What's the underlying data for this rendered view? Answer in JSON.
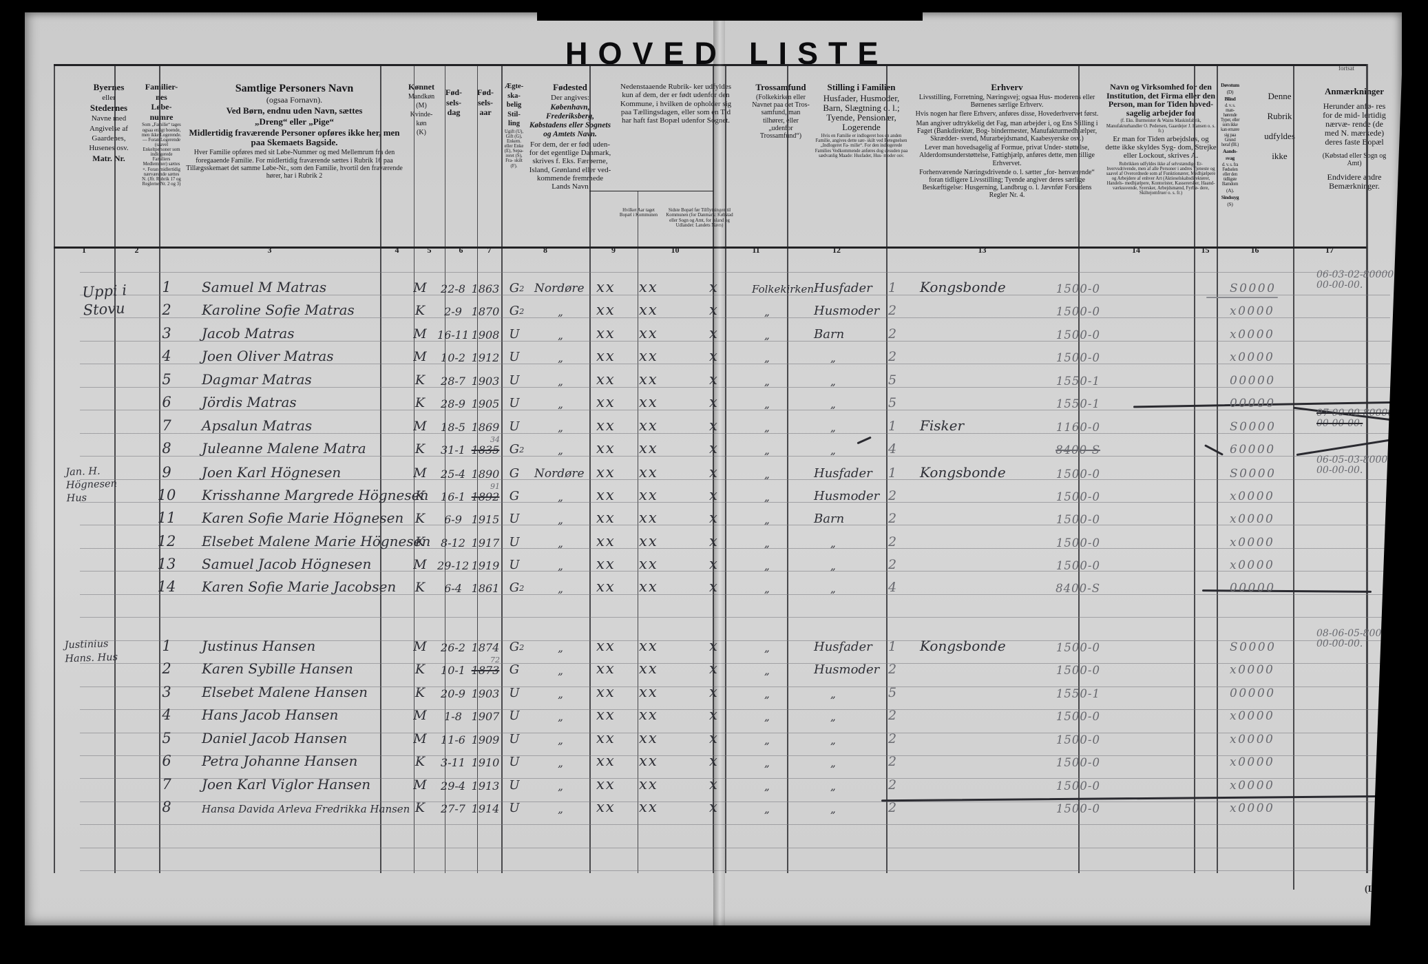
{
  "title": {
    "left": "HOVED",
    "right": "LISTE",
    "continued": "fortsat",
    "corner": "(L)"
  },
  "marks": [
    "xx",
    "xx",
    "x"
  ],
  "columns": [
    {
      "num": "1",
      "parts": [
        {
          "s": "b13",
          "t": "Byernes"
        },
        {
          "s": "r11",
          "t": "eller"
        },
        {
          "s": "b13",
          "t": "Stedernes"
        },
        {
          "s": "r11",
          "t": "Navne med"
        },
        {
          "s": "r11",
          "t": "Angivelse af"
        },
        {
          "s": "r11",
          "t": "Gaardenes,"
        },
        {
          "s": "r11",
          "t": "Husenes osv."
        },
        {
          "s": "b12",
          "t": "Matr. Nr."
        }
      ]
    },
    {
      "num": "2",
      "parts": [
        {
          "s": "b12",
          "t": "Familier-"
        },
        {
          "s": "b12",
          "t": "nes"
        },
        {
          "s": "b12",
          "t": "Løbe-"
        },
        {
          "s": "b12",
          "t": "numre"
        },
        {
          "s": "t6",
          "t": "Som „Familie“ tages ogsaa enligt boende, men ikke Logerende. — Foran Logerende (saavel Enkeltpersoner som indlogerede Familiers Medlemmer) sættes ×. Foran midlertidig nærværende sættes N. (Jfr. Rubrik 17 og Reglerne Nr. 2 og 3)"
        }
      ]
    },
    {
      "num": "3",
      "parts": [
        {
          "s": "b15",
          "t": "Samtlige Personers Navn"
        },
        {
          "s": "r12",
          "t": "(ogsaa Fornavn)."
        },
        {
          "s": "b13",
          "t": "Ved Børn, endnu uden Navn, sættes"
        },
        {
          "s": "b13",
          "t": "„Dreng“ eller „Pige“"
        },
        {
          "s": "b13",
          "t": "Midlertidig fraværende Personer opføres ikke her, men paa Skemaets Bagside."
        },
        {
          "s": "r10",
          "t": "Hver Familie opføres med sit Løbe-Nummer og med Mellemrum fra den foregaaende Familie. For midlertidig fraværende sættes i Rubrik 16 paa Tillægsskemaet det samme Løbe-Nr., som den Familie, hvortil den fraværende hører, har i Rubrik 2"
        }
      ]
    },
    {
      "num": "4",
      "parts": [
        {
          "s": "b12",
          "t": "Kønnet"
        },
        {
          "s": "r10",
          "t": "Mandkøn"
        },
        {
          "s": "r10",
          "t": "(M)"
        },
        {
          "s": "r10",
          "t": "Kvinde-"
        },
        {
          "s": "r10",
          "t": "køn"
        },
        {
          "s": "r10",
          "t": "(K)"
        }
      ]
    },
    {
      "num": "5",
      "parts": [
        {
          "s": "gap",
          "t": ""
        },
        {
          "s": "b12",
          "t": "Fød-"
        },
        {
          "s": "b12",
          "t": "sels-"
        },
        {
          "s": "b12",
          "t": "dag"
        }
      ]
    },
    {
      "num": "6",
      "parts": [
        {
          "s": "gap",
          "t": ""
        },
        {
          "s": "b12",
          "t": "Fød-"
        },
        {
          "s": "b12",
          "t": "sels-"
        },
        {
          "s": "b12",
          "t": "aar"
        }
      ]
    },
    {
      "num": "7",
      "parts": [
        {
          "s": "b10",
          "t": "Ægte-"
        },
        {
          "s": "b10",
          "t": "ska-"
        },
        {
          "s": "b10",
          "t": "belig"
        },
        {
          "s": "b10",
          "t": "Stil-"
        },
        {
          "s": "b10",
          "t": "ling"
        },
        {
          "s": "t6",
          "t": "Ugift (U), Gift (G), Enkem. eller Enke (E), Sepa- reret (S), Fra- skilt (F)."
        }
      ]
    },
    {
      "num": "8",
      "parts": [
        {
          "s": "b13",
          "t": "Fødested"
        },
        {
          "s": "r11",
          "t": "Der angives:"
        },
        {
          "s": "i11",
          "t": "København, Frederiksberg, Købstadens eller Sognets og Amtets Navn."
        },
        {
          "s": "r11",
          "t": "For dem, der er født uden- for det egentlige Danmark, skrives f. Eks. Færøerne, Island, Grønland eller ved- kommende fremmede Lands Navn"
        }
      ]
    },
    {
      "num": "9",
      "parts": [
        {
          "s": "r11",
          "t": "Nedenstaaende Rubrik- ker udfyldes kun af dem, der er født udenfor den Kommune, i hvilken de opholder sig paa Tællingsdagen, eller som en Tid har haft fast Bopæl udenfor Sognet."
        }
      ],
      "sub9": "Hvilket Aar taget Bopæl i Kommunen",
      "sub10": "Sidste Bopæl før Tilflytningen til Kommunen (for Danmark: Købstad eller Sogn og Amt, for Island og Udlandet: Landets Navn)"
    },
    {
      "num": "10",
      "parts": []
    },
    {
      "num": "11",
      "parts": [
        {
          "s": "b13",
          "t": "Trossamfund"
        },
        {
          "s": "r10",
          "t": "(Folkekirken eller Navnet paa det Tros- samfund, man tilhører, eller „udenfor Trossamfund“)"
        }
      ]
    },
    {
      "num": "12",
      "parts": [
        {
          "s": "b13",
          "t": "Stilling i Familien"
        },
        {
          "s": "r13",
          "t": "Husfader, Husmoder, Barn, Slægtning o. l.; Tyende, Pensionær, Logerende"
        },
        {
          "s": "t6",
          "t": "Hvis en Familie er indlogeret hos en anden Familie, angives dette sær- skilt ved Betegnelsen „Indlogeret Fa- milie“. For den indlogerede Families Vedkommende anføres dog desuden paa sædvanlig Maade: Husfader, Hus- moder osv."
        }
      ]
    },
    {
      "num": "13",
      "parts": [
        {
          "s": "b13",
          "t": "Erhverv"
        },
        {
          "s": "r10",
          "t": "Livsstilling, Forretning, Næringsvej; ogsaa Hus- moderens eller Børnenes særlige Erhverv."
        },
        {
          "s": "r10",
          "t": "Hvis nogen har flere Erhverv, anføres disse, Hovederhvervet først."
        },
        {
          "s": "r10",
          "t": "Man angiver udtrykkelig det Fag, man arbejder i, og Ens Stilling i Faget (Bankdirektør, Bog- bindermester, Manufakturmedhjælper, Skrædder- svend, Murarbejdsmand, Kaabesyerske osv.)"
        },
        {
          "s": "r10",
          "t": "Lever man hovedsagelig af Formue, privat Under- støttelse, Alderdomsunderstøttelse, Fattighjælp, anføres dette, men tillige Erhvervet."
        },
        {
          "s": "r10",
          "t": "Forhenværende Næringsdrivende o. l. sætter „for- henværende“ foran tidligere Livsstilling; Tyende angiver deres særlige Beskæftigelse: Husgerning, Landbrug o. l. Jævnfør Forsidens Regler Nr. 4."
        }
      ]
    },
    {
      "num": "14",
      "parts": [
        {
          "s": "b12",
          "t": "Navn og Virksomhed for den Institution, det Firma eller den Person, man for Tiden hoved- sagelig arbejder for"
        },
        {
          "s": "t6",
          "t": "(f. Eks. Burmeister & Wains Maskinfabrik, Manufakturhandler O. Pedersen, Gaardejer J. Hansen o. s. fr.)"
        },
        {
          "s": "r11",
          "t": "Er man for Tiden arbejdsløs, og dette ikke skyldes Syg- dom, Strejke eller Lockout, skrives A."
        },
        {
          "s": "t6",
          "t": "Rubrikken udfyldes ikke af selvstændige Er- hvervsdrivende, men af alle Personer i andres Tjeneste og saavel af Overordnede som af Funktionærer, Medhjælpere og Arbejdere af enhver Art (Aktieselskabsdirektører, Handels- medhjælpere, Kontorister, Kasserersker, Haand- værkssvende, Syersker, Arbejdsmænd, Fyrbø- dere, Skiltejomfruer o. s. fr.)"
        }
      ]
    },
    {
      "num": "15",
      "parts": [
        {
          "s": "b8",
          "t": "Døvstum"
        },
        {
          "s": "r8",
          "t": "(D)"
        },
        {
          "s": "b8",
          "t": "Blind"
        },
        {
          "s": "t6",
          "t": "d. v. s. man- hørende Typer, eller som ikke kan ernære sig paa Grund heraf (Bl.)"
        },
        {
          "s": "b8",
          "t": "Aands-"
        },
        {
          "s": "b8",
          "t": "svag"
        },
        {
          "s": "t6",
          "t": "d. v. s. fra Fødselen eller den tidligste Barndom"
        },
        {
          "s": "r8",
          "t": "(A)."
        },
        {
          "s": "b8",
          "t": "Sindssyg"
        },
        {
          "s": "r8",
          "t": "(S)"
        }
      ]
    },
    {
      "num": "16",
      "parts": [
        {
          "s": "r13",
          "t": "Denne"
        },
        {
          "s": "r13",
          "t": "Rubrik"
        },
        {
          "s": "r13",
          "t": "udfyldes"
        },
        {
          "s": "r13",
          "t": "ikke"
        }
      ]
    },
    {
      "num": "17",
      "parts": [
        {
          "s": "b13",
          "t": "Anmærkninger"
        },
        {
          "s": "r12",
          "t": "Herunder anfø- res for de mid- lertidig nærvæ- rende (de med N. mærkede) deres faste Bopæl"
        },
        {
          "s": "r10",
          "t": "(Købstad eller Sogn og Amt)"
        },
        {
          "s": "r12",
          "t": "Endvidere andre Bemærkninger."
        }
      ]
    }
  ],
  "families": [
    {
      "place": [
        "Uppi i",
        "Stovu"
      ],
      "rows": [
        {
          "n": "1",
          "name": "Samuel M Matras",
          "sex": "M",
          "bd": "22-8",
          "by": "1863",
          "cv": "G",
          "cvs": "2",
          "bo": "Nordøre",
          "fa": "Folkekirken",
          "po": "Husfader",
          "pn": "1",
          "oc": "Kongsbonde",
          "cd": "1500-0",
          "s16": "S0000",
          "a17": [
            "06-03-02-80000",
            "00-00-00."
          ]
        },
        {
          "n": "2",
          "name": "Karoline Sofie Matras",
          "sex": "K",
          "bd": "2-9",
          "by": "1870",
          "cv": "G",
          "cvs": "2",
          "bo": "„",
          "fa": "„",
          "po": "Husmoder",
          "pn": "2",
          "cd": "1500-0",
          "s16": "x0000"
        },
        {
          "n": "3",
          "name": "Jacob Matras",
          "sex": "M",
          "bd": "16-11",
          "by": "1908",
          "cv": "U",
          "bo": "„",
          "fa": "„",
          "po": "Barn",
          "pn": "2",
          "cd": "1500-0",
          "s16": "x0000"
        },
        {
          "n": "4",
          "name": "Joen Oliver Matras",
          "sex": "M",
          "bd": "10-2",
          "by": "1912",
          "cv": "U",
          "bo": "„",
          "fa": "„",
          "po": "„",
          "pn": "2",
          "cd": "1500-0",
          "s16": "x0000"
        },
        {
          "n": "5",
          "name": "Dagmar Matras",
          "sex": "K",
          "bd": "28-7",
          "by": "1903",
          "cv": "U",
          "bo": "„",
          "fa": "„",
          "po": "„",
          "pn": "5",
          "cd": "1550-1",
          "s16": "00000"
        },
        {
          "n": "6",
          "name": "Jördis Matras",
          "sex": "K",
          "bd": "28-9",
          "by": "1905",
          "cv": "U",
          "bo": "„",
          "fa": "„",
          "po": "„",
          "pn": "5",
          "cd": "1550-1",
          "s16": "00000"
        },
        {
          "n": "7",
          "name": "Apsalun Matras",
          "sex": "M",
          "bd": "18-5",
          "by": "1869",
          "cv": "U",
          "bo": "„",
          "fa": "„",
          "po": "„",
          "pn": "1",
          "oc": "Fisker",
          "cd": "1160-0",
          "s16": "S0000",
          "a17": [
            "07-00-00-80000",
            "00-00-00."
          ],
          "a17s": true
        },
        {
          "n": "8",
          "name": "Juleanne Malene Matra",
          "sex": "K",
          "bd": "31-1",
          "by": "1835",
          "bys": "34",
          "cv": "G",
          "cvs": "2",
          "bo": "„",
          "fa": "„",
          "po": "„",
          "pn": "4",
          "cd": "8400-S",
          "cds": true,
          "s16": "60000"
        }
      ]
    },
    {
      "place": [
        "Jan. H.",
        "Högnesen",
        "Hus"
      ],
      "rows": [
        {
          "n": "9",
          "name": "Joen Karl Högnesen",
          "sex": "M",
          "bd": "25-4",
          "by": "1890",
          "cv": "G",
          "bo": "Nordøre",
          "fa": "„",
          "po": "Husfader",
          "pn": "1",
          "oc": "Kongsbonde",
          "cd": "1500-0",
          "s16": "S0000",
          "a17": [
            "06-05-03-80000",
            "00-00-00."
          ]
        },
        {
          "n": "10",
          "name": "Krisshanne Margrede Högnesen",
          "sex": "K",
          "bd": "16-1",
          "by": "1892",
          "bys": "91",
          "cv": "G",
          "bo": "„",
          "fa": "„",
          "po": "Husmoder",
          "pn": "2",
          "cd": "1500-0",
          "s16": "x0000"
        },
        {
          "n": "11",
          "name": "Karen Sofie Marie Högnesen",
          "sex": "K",
          "bd": "6-9",
          "by": "1915",
          "cv": "U",
          "bo": "„",
          "fa": "„",
          "po": "Barn",
          "pn": "2",
          "cd": "1500-0",
          "s16": "x0000"
        },
        {
          "n": "12",
          "name": "Elsebet Malene Marie Högnesen",
          "sex": "K",
          "bd": "8-12",
          "by": "1917",
          "cv": "U",
          "bo": "„",
          "fa": "„",
          "po": "„",
          "pn": "2",
          "cd": "1500-0",
          "s16": "x0000"
        },
        {
          "n": "13",
          "name": "Samuel Jacob Högnesen",
          "sex": "M",
          "bd": "29-12",
          "by": "1919",
          "cv": "U",
          "bo": "„",
          "fa": "„",
          "po": "„",
          "pn": "2",
          "cd": "1500-0",
          "s16": "x0000"
        },
        {
          "n": "14",
          "name": "Karen Sofie Marie Jacobsen",
          "sex": "K",
          "bd": "6-4",
          "by": "1861",
          "cv": "G",
          "cvs": "2",
          "bo": "„",
          "fa": "„",
          "po": "„",
          "pn": "4",
          "cd": "8400-S",
          "s16": "00000"
        }
      ]
    },
    {
      "place": [
        "Justinius",
        "Hans. Hus"
      ],
      "rows": [
        {
          "n": "1",
          "name": "Justinus Hansen",
          "sex": "M",
          "bd": "26-2",
          "by": "1874",
          "cv": "G",
          "cvs": "2",
          "bo": "„",
          "fa": "„",
          "po": "Husfader",
          "pn": "1",
          "oc": "Kongsbonde",
          "cd": "1500-0",
          "s16": "S0000",
          "a17": [
            "08-06-05-80000",
            "00-00-00."
          ]
        },
        {
          "n": "2",
          "name": "Karen Sybille Hansen",
          "sex": "K",
          "bd": "10-1",
          "by": "1873",
          "bys": "72",
          "cv": "G",
          "bo": "„",
          "fa": "„",
          "po": "Husmoder",
          "pn": "2",
          "cd": "1500-0",
          "s16": "x0000"
        },
        {
          "n": "3",
          "name": "Elsebet Malene Hansen",
          "sex": "K",
          "bd": "20-9",
          "by": "1903",
          "cv": "U",
          "bo": "„",
          "fa": "„",
          "po": "„",
          "pn": "5",
          "cd": "1550-1",
          "s16": "00000"
        },
        {
          "n": "4",
          "name": "Hans Jacob Hansen",
          "sex": "M",
          "bd": "1-8",
          "by": "1907",
          "cv": "U",
          "bo": "„",
          "fa": "„",
          "po": "„",
          "pn": "2",
          "cd": "1500-0",
          "s16": "x0000"
        },
        {
          "n": "5",
          "name": "Daniel Jacob Hansen",
          "sex": "M",
          "bd": "11-6",
          "by": "1909",
          "cv": "U",
          "bo": "„",
          "fa": "„",
          "po": "„",
          "pn": "2",
          "cd": "1500-0",
          "s16": "x0000"
        },
        {
          "n": "6",
          "name": "Petra Johanne Hansen",
          "sex": "K",
          "bd": "3-11",
          "by": "1910",
          "cv": "U",
          "bo": "„",
          "fa": "„",
          "po": "„",
          "pn": "2",
          "cd": "1500-0",
          "s16": "x0000"
        },
        {
          "n": "7",
          "name": "Joen Karl Viglor Hansen",
          "sex": "M",
          "bd": "29-4",
          "by": "1913",
          "cv": "U",
          "bo": "„",
          "fa": "„",
          "po": "„",
          "pn": "2",
          "cd": "1500-0",
          "s16": "x0000"
        },
        {
          "n": "8",
          "name": "Hansa Davida Arleva Fredrikka Hansen",
          "cls": "long",
          "sex": "K",
          "bd": "27-7",
          "by": "1914",
          "cv": "U",
          "bo": "„",
          "fa": "„",
          "po": "„",
          "pn": "2",
          "cd": "1500-0",
          "s16": "x0000"
        }
      ]
    }
  ]
}
